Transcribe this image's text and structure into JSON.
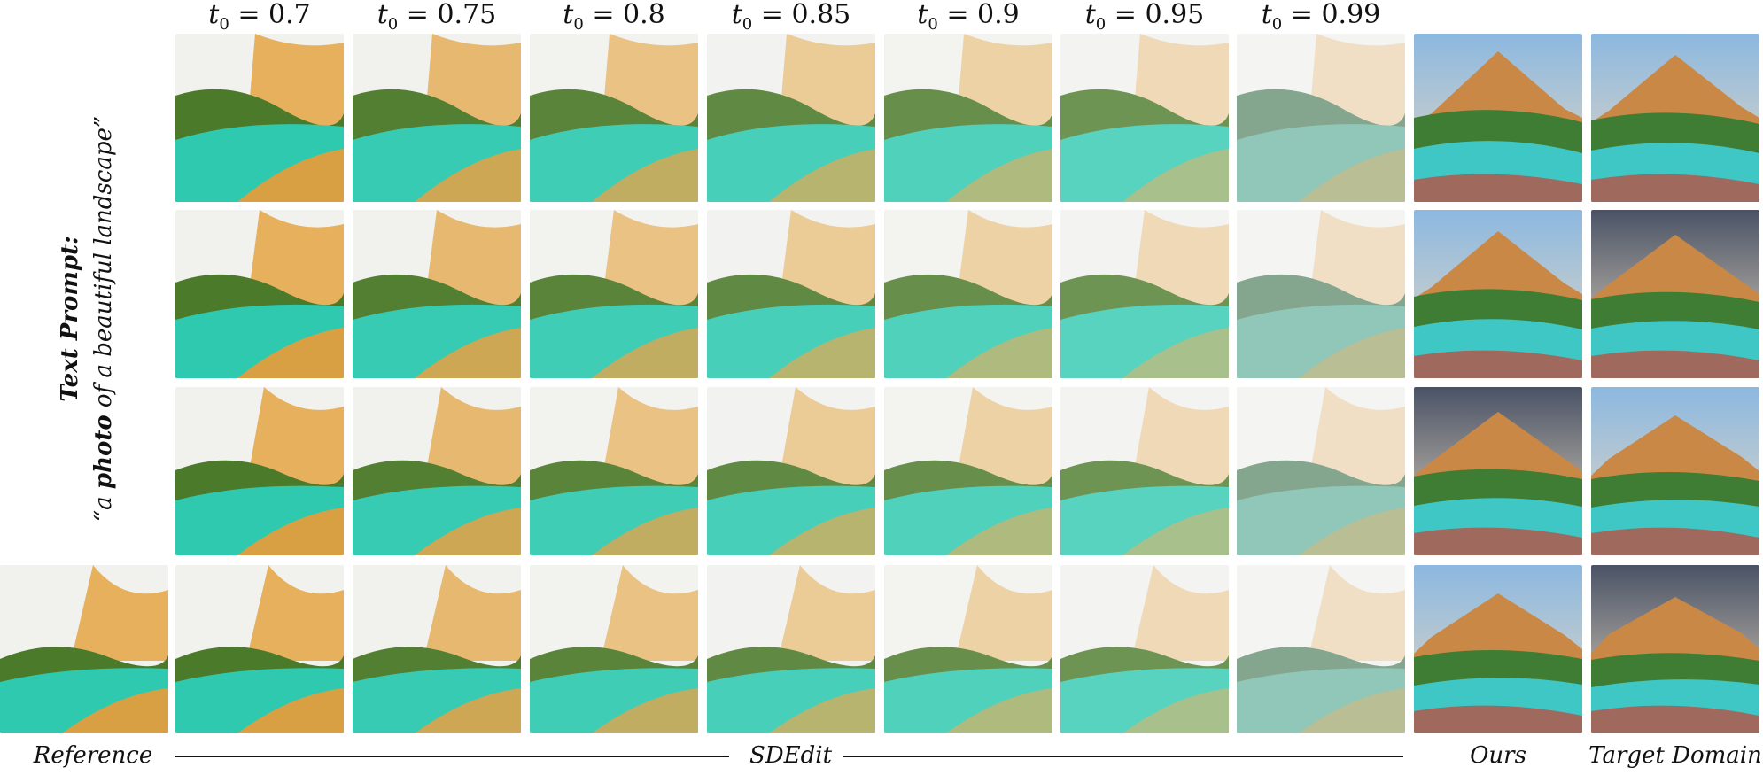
{
  "column_headers": [
    {
      "sym": "t",
      "sub": "0",
      "val": "0.7"
    },
    {
      "sym": "t",
      "sub": "0",
      "val": "0.75"
    },
    {
      "sym": "t",
      "sub": "0",
      "val": "0.8"
    },
    {
      "sym": "t",
      "sub": "0",
      "val": "0.85"
    },
    {
      "sym": "t",
      "sub": "0",
      "val": "0.9"
    },
    {
      "sym": "t",
      "sub": "0",
      "val": "0.95"
    },
    {
      "sym": "t",
      "sub": "0",
      "val": "0.99"
    }
  ],
  "prompt": {
    "label": "Text Prompt:",
    "open_quote": "“a ",
    "bold_word": "photo",
    "rest": " of a beautiful landscape”"
  },
  "footer": {
    "reference": "Reference",
    "sdedit": "SDEdit",
    "ours": "Ours",
    "target": "Target Domain"
  },
  "rows": 4,
  "colors": {
    "sky": "#f1f1ee",
    "hill_dark": "#4b7a2a",
    "hill_green": "#5aa63a",
    "water": "#2fc9b0",
    "sand": "#d9a043",
    "peak": "#e6b05c",
    "realistic_sky": "#8cb8e0",
    "realistic_rock": "#c98845"
  }
}
